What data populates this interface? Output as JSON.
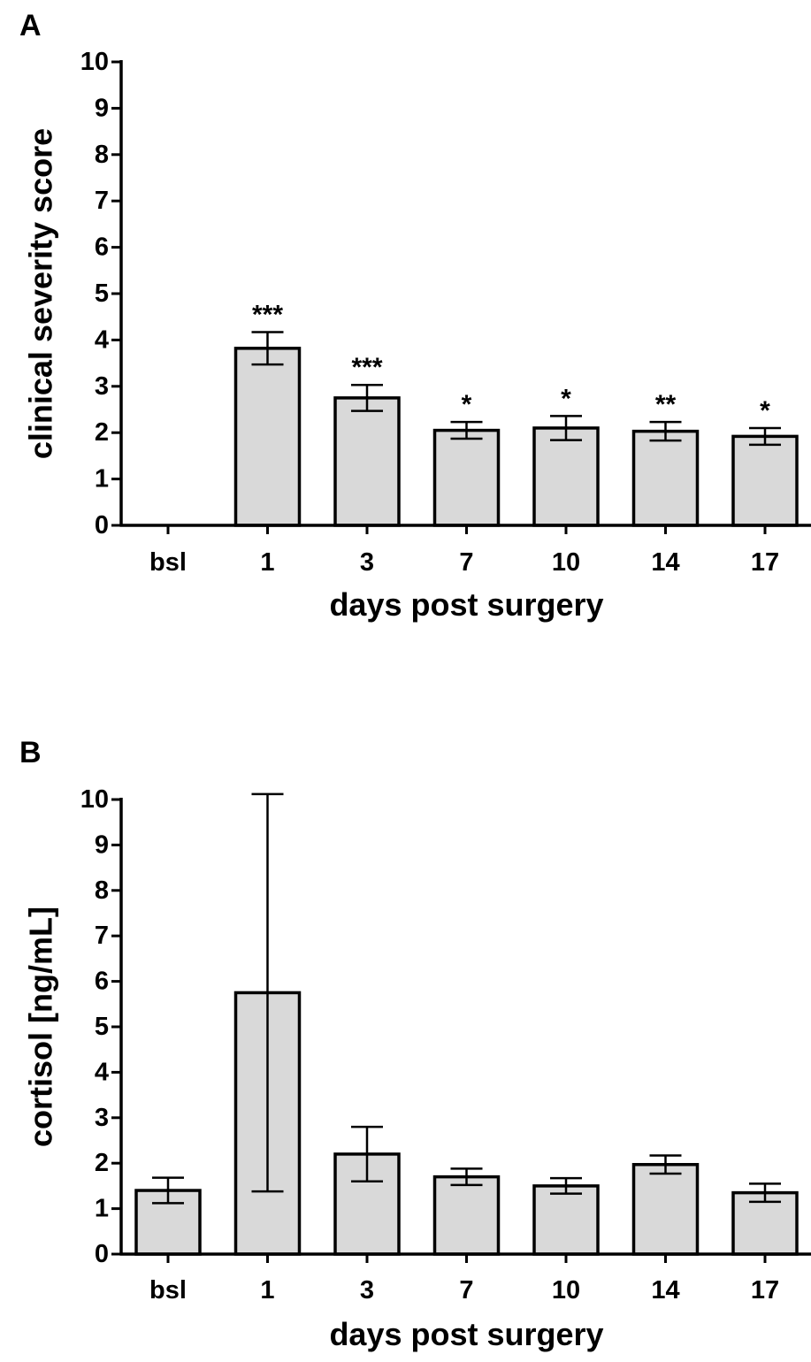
{
  "chart_data": [
    {
      "panel": "A",
      "type": "bar",
      "categories": [
        "bsl",
        "1",
        "3",
        "7",
        "10",
        "14",
        "17"
      ],
      "values": [
        0,
        3.82,
        2.75,
        2.05,
        2.1,
        2.03,
        1.92
      ],
      "errors": [
        0,
        0.35,
        0.28,
        0.18,
        0.26,
        0.2,
        0.18
      ],
      "annotations": [
        "",
        "***",
        "***",
        "*",
        "*",
        "**",
        "*"
      ],
      "xlabel": "days post surgery",
      "ylabel": "clinical severity score",
      "ylim": [
        0,
        10
      ],
      "yticks": [
        "0",
        "1",
        "2",
        "3",
        "4",
        "5",
        "6",
        "7",
        "8",
        "9",
        "10"
      ],
      "bar_color": "#d9d9d9"
    },
    {
      "panel": "B",
      "type": "bar",
      "categories": [
        "bsl",
        "1",
        "3",
        "7",
        "10",
        "14",
        "17"
      ],
      "values": [
        1.4,
        5.75,
        2.2,
        1.7,
        1.5,
        1.97,
        1.35
      ],
      "errors": [
        0.28,
        4.37,
        0.6,
        0.18,
        0.17,
        0.2,
        0.2
      ],
      "annotations": [
        "",
        "",
        "",
        "",
        "",
        "",
        ""
      ],
      "xlabel": "days post surgery",
      "ylabel": "cortisol [ng/mL]",
      "ylim": [
        0,
        10
      ],
      "yticks": [
        "0",
        "1",
        "2",
        "3",
        "4",
        "5",
        "6",
        "7",
        "8",
        "9",
        "10"
      ],
      "bar_color": "#d9d9d9"
    }
  ]
}
